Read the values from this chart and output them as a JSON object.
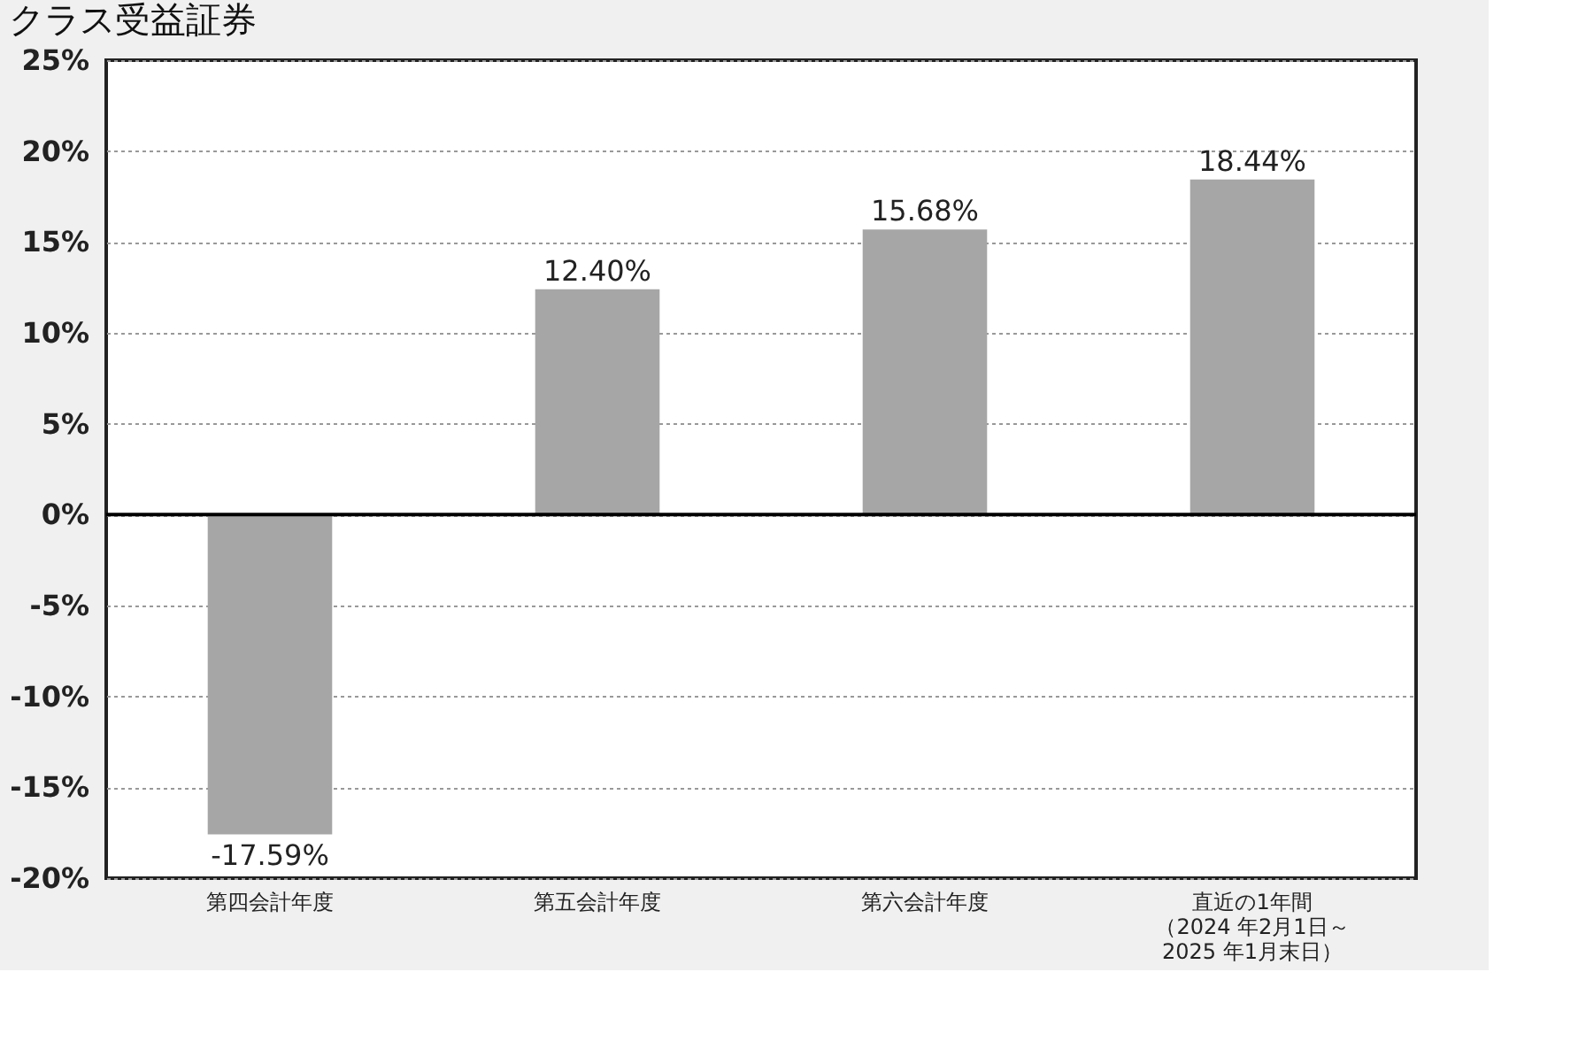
{
  "chart_data": {
    "type": "bar",
    "title": "クラス受益証券",
    "categories": [
      "第四会計年度",
      "第五会計年度",
      "第六会計年度",
      "直近の1年間（2024 年2月1日～2025 年1月末日）"
    ],
    "values": [
      -17.59,
      12.4,
      15.68,
      18.44
    ],
    "value_labels": [
      "-17.59%",
      "12.40%",
      "15.68%",
      "18.44%"
    ],
    "color": "#a6a6a6",
    "ylim": [
      -20,
      25
    ],
    "yticks": [
      {
        "value": -20,
        "label": "-20%"
      },
      {
        "value": -15,
        "label": "-15%"
      },
      {
        "value": -10,
        "label": "-10%"
      },
      {
        "value": -5,
        "label": "-5%"
      },
      {
        "value": 0,
        "label": "0%"
      },
      {
        "value": 5,
        "label": "5%"
      },
      {
        "value": 10,
        "label": "10%"
      },
      {
        "value": 15,
        "label": "15%"
      },
      {
        "value": 20,
        "label": "20%"
      },
      {
        "value": 25,
        "label": "25%"
      }
    ],
    "ref_lines": [
      {
        "axis": "y",
        "value": 0,
        "color": "#000000"
      }
    ],
    "grid": "y"
  }
}
